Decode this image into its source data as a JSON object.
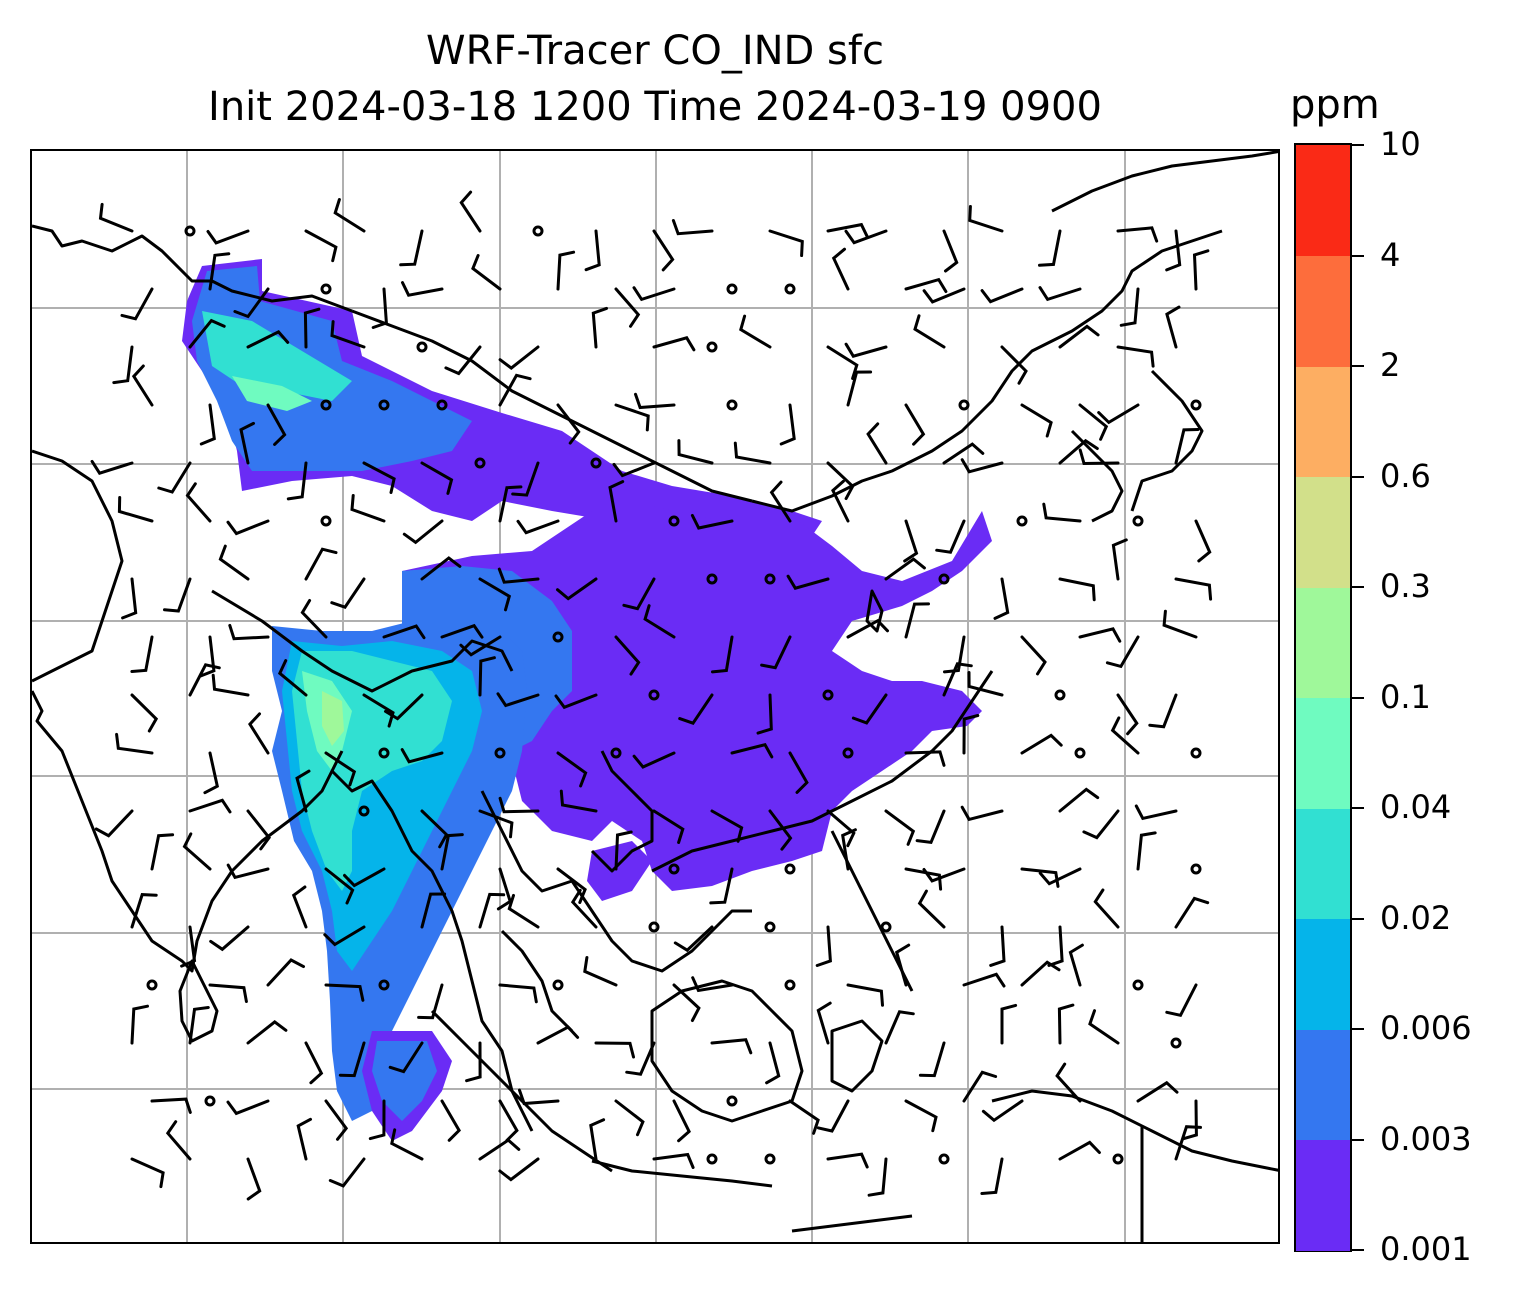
{
  "title": {
    "line1": "WRF-Tracer CO_IND sfc",
    "line2": "Init 2024-03-18 1200 Time 2024-03-19 0900"
  },
  "colorbar": {
    "unit": "ppm",
    "levels": [
      "0.001",
      "0.003",
      "0.006",
      "0.02",
      "0.04",
      "0.1",
      "0.3",
      "0.6",
      "2",
      "4",
      "10"
    ],
    "colors": [
      "#6a2cf5",
      "#3477f0",
      "#05b4ea",
      "#31e0d2",
      "#6ffbc0",
      "#9ff89a",
      "#d2e08a",
      "#fdae62",
      "#fd6d3c",
      "#fa2a16"
    ]
  },
  "map": {
    "gridlines": true,
    "coastline_color": "#000000",
    "barb_color": "#000000",
    "tracer_plume": "CO_IND concentration field over India, Bangladesh, Myanmar, Indochina and southern China",
    "wind_barbs": true
  }
}
